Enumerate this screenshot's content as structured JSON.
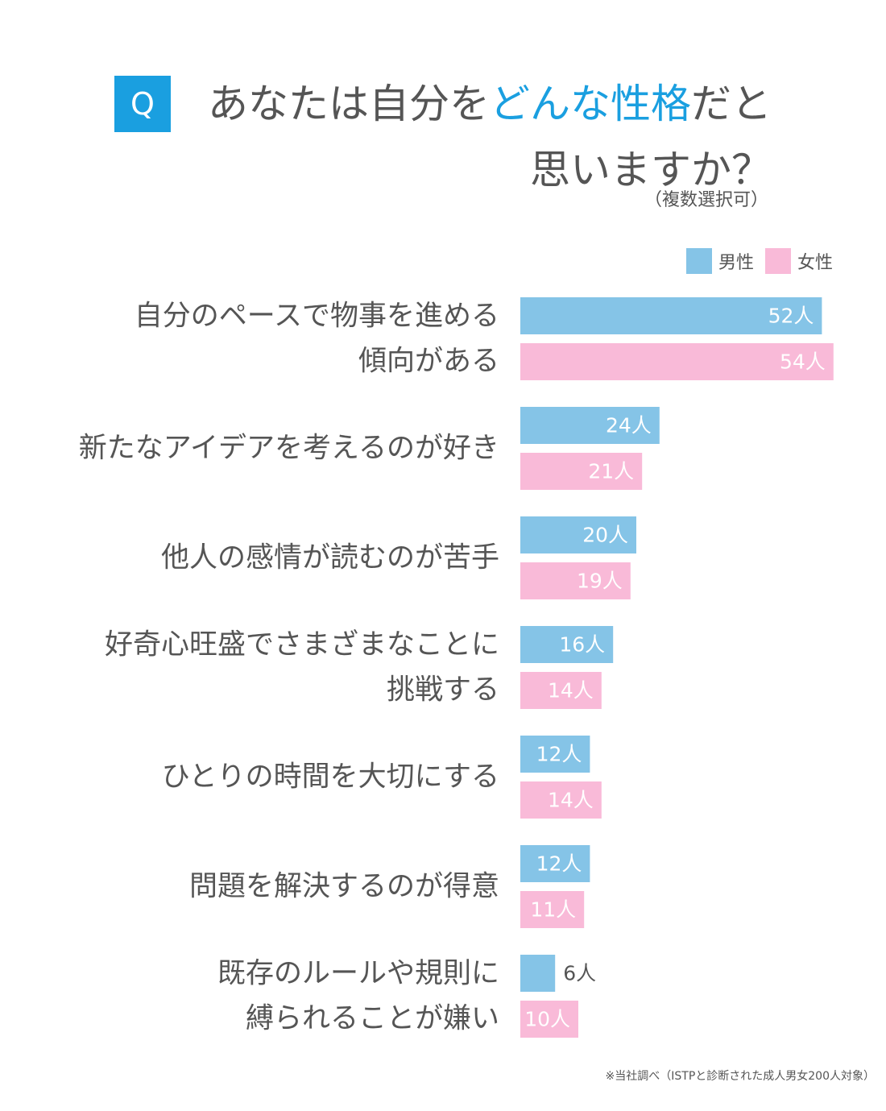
{
  "header": {
    "q_label": "Q",
    "title_part1": "あなたは自分を",
    "title_highlight": "どんな性格",
    "title_part2": "だと",
    "title_line2": "思いますか？",
    "note": "（複数選択可）"
  },
  "colors": {
    "accent": "#1a9fe0",
    "male": "#85c4e7",
    "female": "#f9bad8",
    "text": "#555555"
  },
  "chart_data": {
    "type": "bar",
    "orientation": "horizontal",
    "categories": [
      [
        "自分のペースで物事を進める",
        "傾向がある"
      ],
      [
        "新たなアイデアを考えるのが好き"
      ],
      [
        "他人の感情が読むのが苦手"
      ],
      [
        "好奇心旺盛でさまざまなことに",
        "挑戦する"
      ],
      [
        "ひとりの時間を大切にする"
      ],
      [
        "問題を解決するのが得意"
      ],
      [
        "既存のルールや規則に",
        "縛られることが嫌い"
      ]
    ],
    "series": [
      {
        "name": "男性",
        "values": [
          52,
          24,
          20,
          16,
          12,
          12,
          6
        ],
        "labels": [
          "52人",
          "24人",
          "20人",
          "16人",
          "12人",
          "12人",
          "6人"
        ]
      },
      {
        "name": "女性",
        "values": [
          54,
          21,
          19,
          14,
          14,
          11,
          10
        ],
        "labels": [
          "54人",
          "21人",
          "19人",
          "14人",
          "14人",
          "11人",
          "10人"
        ]
      }
    ],
    "legend": "top-right",
    "grid": false
  },
  "footer": {
    "source": "※当社調べ（ISTPと診断された成人男女200人対象）"
  }
}
